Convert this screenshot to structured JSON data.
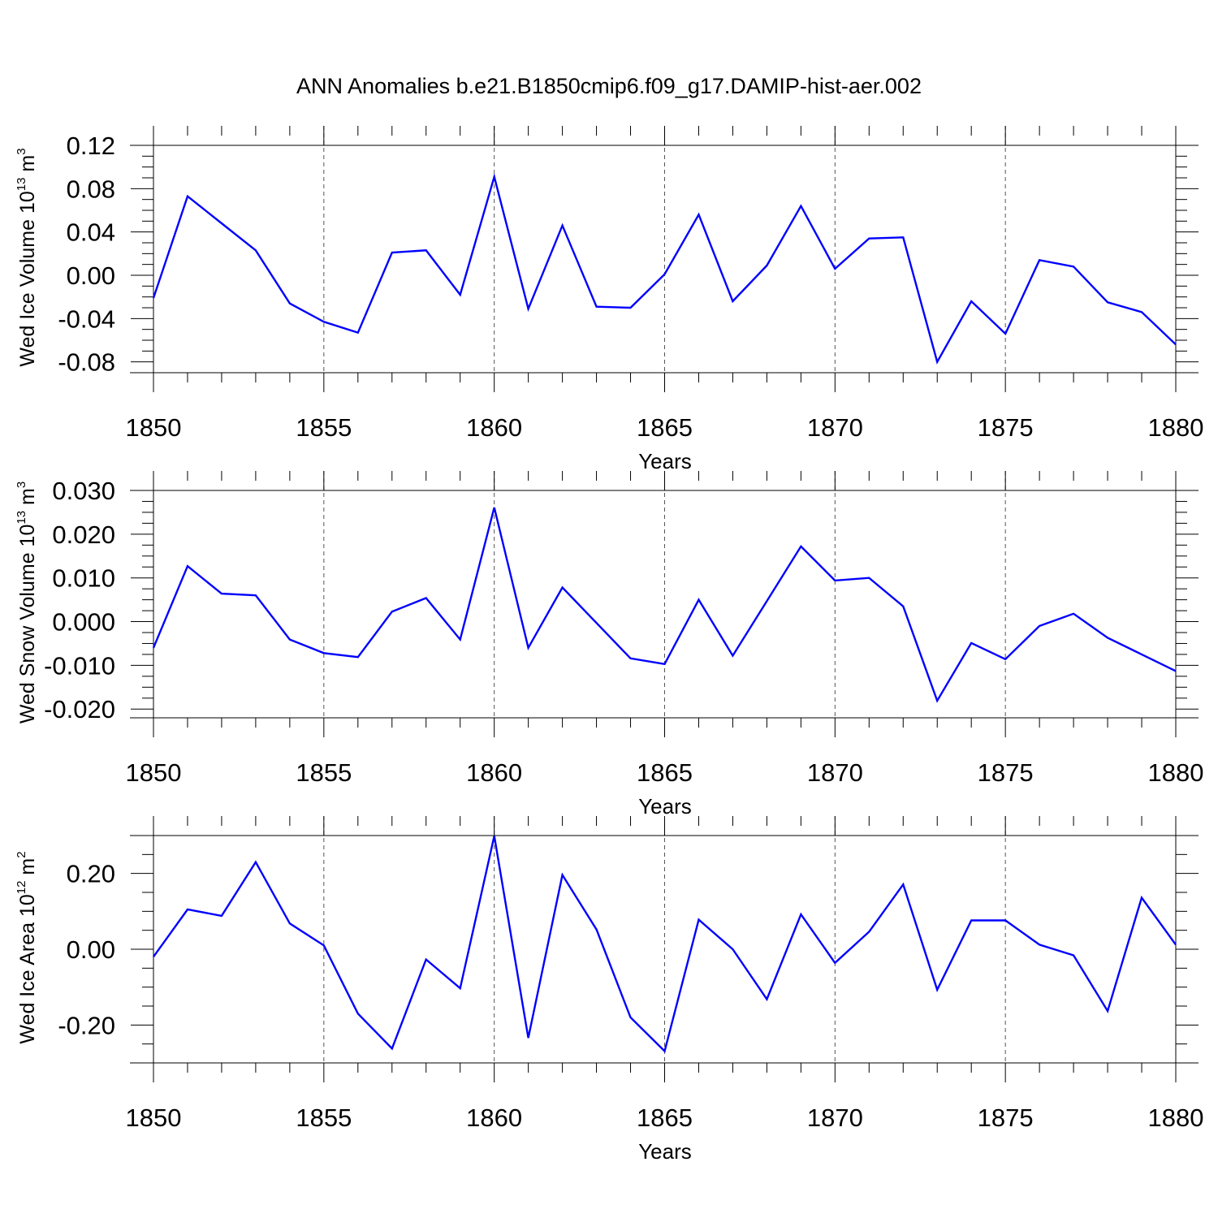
{
  "title": "ANN Anomalies b.e21.B1850cmip6.f09_g17.DAMIP-hist-aer.002",
  "chart_data": [
    {
      "type": "line",
      "ylabel": {
        "base": "Wed Ice Volume 10",
        "exp": "13",
        "unit": " m",
        "unit_exp": "3"
      },
      "xlabel": "Years",
      "xlim": [
        1850,
        1880
      ],
      "ylim": [
        -0.09,
        0.12
      ],
      "yticks": [
        -0.08,
        -0.04,
        0.0,
        0.04,
        0.08,
        0.12
      ],
      "ytick_labels": [
        "-0.08",
        "-0.04",
        "0.00",
        "0.04",
        "0.08",
        "0.12"
      ],
      "xticks": [
        1850,
        1855,
        1860,
        1865,
        1870,
        1875,
        1880
      ],
      "xtick_labels": [
        "1850",
        "1855",
        "1860",
        "1865",
        "1870",
        "1875",
        "1880"
      ],
      "grid": "dashed vertical at major x ticks",
      "color": "#0000ff",
      "x": [
        1850,
        1851,
        1852,
        1853,
        1854,
        1855,
        1856,
        1857,
        1858,
        1859,
        1860,
        1861,
        1862,
        1863,
        1864,
        1865,
        1866,
        1867,
        1868,
        1869,
        1870,
        1871,
        1872,
        1873,
        1874,
        1875,
        1876,
        1877,
        1878,
        1879,
        1880
      ],
      "values": [
        -0.021,
        0.073,
        0.048,
        0.023,
        -0.026,
        -0.043,
        -0.053,
        0.021,
        0.023,
        -0.018,
        0.091,
        -0.031,
        0.046,
        -0.029,
        -0.03,
        0.001,
        0.056,
        -0.024,
        0.009,
        0.064,
        0.006,
        0.034,
        0.035,
        -0.08,
        -0.024,
        -0.054,
        0.014,
        0.008,
        -0.025,
        -0.034,
        -0.064
      ]
    },
    {
      "type": "line",
      "ylabel": {
        "base": "Wed Snow Volume 10",
        "exp": "13",
        "unit": " m",
        "unit_exp": "3"
      },
      "xlabel": "Years",
      "xlim": [
        1850,
        1880
      ],
      "ylim": [
        -0.022,
        0.03
      ],
      "yticks": [
        -0.02,
        -0.01,
        0.0,
        0.01,
        0.02,
        0.03
      ],
      "ytick_labels": [
        "-0.020",
        "-0.010",
        "0.000",
        "0.010",
        "0.020",
        "0.030"
      ],
      "xticks": [
        1850,
        1855,
        1860,
        1865,
        1870,
        1875,
        1880
      ],
      "xtick_labels": [
        "1850",
        "1855",
        "1860",
        "1865",
        "1870",
        "1875",
        "1880"
      ],
      "grid": "dashed vertical at major x ticks",
      "color": "#0000ff",
      "x": [
        1850,
        1851,
        1852,
        1853,
        1854,
        1855,
        1856,
        1857,
        1858,
        1859,
        1860,
        1861,
        1862,
        1863,
        1864,
        1865,
        1866,
        1867,
        1868,
        1869,
        1870,
        1871,
        1872,
        1873,
        1874,
        1875,
        1876,
        1877,
        1878,
        1879,
        1880
      ],
      "values": [
        -0.006,
        0.0127,
        0.0064,
        0.006,
        -0.0041,
        -0.0072,
        -0.0081,
        0.0023,
        0.0054,
        -0.0041,
        0.0261,
        -0.006,
        0.0078,
        -0.0003,
        -0.0084,
        -0.0097,
        0.005,
        -0.0078,
        0.0047,
        0.0172,
        0.0094,
        0.01,
        0.0035,
        -0.0181,
        -0.0049,
        -0.0086,
        -0.001,
        0.0018,
        -0.0037,
        -0.0075,
        -0.0113
      ]
    },
    {
      "type": "line",
      "ylabel": {
        "base": "Wed Ice Area 10",
        "exp": "12",
        "unit": " m",
        "unit_exp": "2"
      },
      "xlabel": "Years",
      "xlim": [
        1850,
        1880
      ],
      "ylim": [
        -0.3,
        0.3
      ],
      "yticks": [
        -0.2,
        0.0,
        0.2
      ],
      "ytick_labels": [
        "-0.20",
        "0.00",
        "0.20"
      ],
      "xticks": [
        1850,
        1855,
        1860,
        1865,
        1870,
        1875,
        1880
      ],
      "xtick_labels": [
        "1850",
        "1855",
        "1860",
        "1865",
        "1870",
        "1875",
        "1880"
      ],
      "grid": "dashed vertical at major x ticks",
      "color": "#0000ff",
      "x": [
        1850,
        1851,
        1852,
        1853,
        1854,
        1855,
        1856,
        1857,
        1858,
        1859,
        1860,
        1861,
        1862,
        1863,
        1864,
        1865,
        1866,
        1867,
        1868,
        1869,
        1870,
        1871,
        1872,
        1873,
        1874,
        1875,
        1876,
        1877,
        1878,
        1879,
        1880
      ],
      "values": [
        -0.02,
        0.105,
        0.088,
        0.23,
        0.068,
        0.01,
        -0.17,
        -0.262,
        -0.027,
        -0.103,
        0.299,
        -0.234,
        0.196,
        0.052,
        -0.18,
        -0.269,
        0.078,
        0.0,
        -0.132,
        0.092,
        -0.036,
        0.046,
        0.171,
        -0.107,
        0.076,
        0.076,
        0.012,
        -0.016,
        -0.163,
        0.136,
        0.012
      ]
    }
  ]
}
